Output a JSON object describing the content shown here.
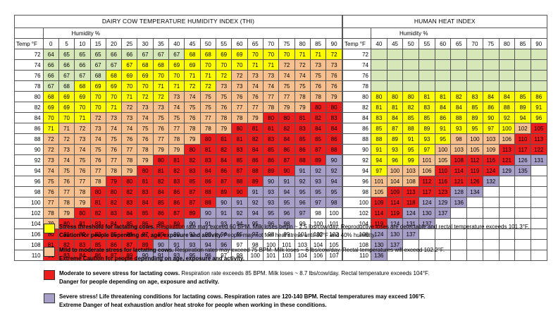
{
  "colors": {
    "green": "#d6e7b8",
    "yellow": "#ffff00",
    "peach": "#f8c08e",
    "red": "#ee1d1d",
    "purple": "#a89fc9",
    "white": "#ffffff"
  },
  "thi": {
    "title": "DAIRY COW TEMPERATURE HUMIDITY INDEX (THI)",
    "humidity_label": "Humidity %",
    "temp_label": "Temp °F",
    "humidity": [
      "0",
      "5",
      "10",
      "15",
      "20",
      "25",
      "30",
      "35",
      "40",
      "45",
      "50",
      "55",
      "60",
      "65",
      "70",
      "75",
      "80",
      "85",
      "90"
    ],
    "temps": [
      "72",
      "74",
      "76",
      "78",
      "80",
      "82",
      "84",
      "86",
      "88",
      "90",
      "92",
      "94",
      "96",
      "98",
      "100",
      "102",
      "104",
      "106",
      "108",
      "110"
    ],
    "rows": [
      [
        "64",
        "65",
        "65",
        "65",
        "66",
        "66",
        "67",
        "67",
        "67",
        "68",
        "68",
        "69",
        "69",
        "70",
        "70",
        "70",
        "71",
        "71",
        "72"
      ],
      [
        "66",
        "66",
        "66",
        "67",
        "67",
        "67",
        "68",
        "68",
        "69",
        "69",
        "70",
        "70",
        "70",
        "71",
        "71",
        "72",
        "72",
        "73",
        "73"
      ],
      [
        "66",
        "67",
        "67",
        "68",
        "68",
        "69",
        "69",
        "70",
        "70",
        "71",
        "71",
        "72",
        "72",
        "73",
        "73",
        "74",
        "74",
        "75",
        "76"
      ],
      [
        "67",
        "68",
        "68",
        "69",
        "69",
        "70",
        "70",
        "71",
        "71",
        "72",
        "72",
        "73",
        "73",
        "74",
        "74",
        "75",
        "75",
        "76",
        "76"
      ],
      [
        "68",
        "69",
        "69",
        "70",
        "70",
        "71",
        "72",
        "72",
        "73",
        "74",
        "75",
        "75",
        "76",
        "76",
        "77",
        "77",
        "78",
        "78",
        "79"
      ],
      [
        "69",
        "69",
        "70",
        "70",
        "71",
        "72",
        "73",
        "73",
        "74",
        "75",
        "75",
        "76",
        "77",
        "77",
        "78",
        "79",
        "79",
        "80",
        "80"
      ],
      [
        "70",
        "70",
        "71",
        "72",
        "73",
        "73",
        "74",
        "75",
        "75",
        "76",
        "77",
        "78",
        "78",
        "79",
        "80",
        "80",
        "81",
        "82",
        "83"
      ],
      [
        "71",
        "71",
        "72",
        "73",
        "74",
        "74",
        "75",
        "76",
        "77",
        "78",
        "78",
        "79",
        "80",
        "81",
        "81",
        "82",
        "83",
        "84",
        "84"
      ],
      [
        "72",
        "72",
        "73",
        "74",
        "75",
        "76",
        "76",
        "77",
        "78",
        "79",
        "80",
        "81",
        "81",
        "82",
        "83",
        "84",
        "85",
        "85",
        "86"
      ],
      [
        "72",
        "73",
        "74",
        "75",
        "76",
        "77",
        "78",
        "79",
        "79",
        "80",
        "81",
        "82",
        "83",
        "84",
        "85",
        "86",
        "86",
        "87",
        "88"
      ],
      [
        "73",
        "74",
        "75",
        "76",
        "77",
        "78",
        "79",
        "80",
        "81",
        "82",
        "83",
        "84",
        "85",
        "86",
        "86",
        "87",
        "88",
        "89",
        "90"
      ],
      [
        "74",
        "75",
        "76",
        "77",
        "78",
        "79",
        "80",
        "81",
        "82",
        "83",
        "84",
        "86",
        "87",
        "88",
        "89",
        "90",
        "91",
        "92",
        "92"
      ],
      [
        "75",
        "76",
        "77",
        "78",
        "79",
        "80",
        "81",
        "82",
        "83",
        "85",
        "86",
        "87",
        "88",
        "89",
        "90",
        "91",
        "92",
        "93",
        "94"
      ],
      [
        "76",
        "77",
        "78",
        "80",
        "80",
        "82",
        "83",
        "84",
        "86",
        "87",
        "88",
        "89",
        "90",
        "91",
        "93",
        "94",
        "95",
        "95",
        "95"
      ],
      [
        "77",
        "78",
        "79",
        "81",
        "82",
        "83",
        "84",
        "85",
        "86",
        "87",
        "88",
        "90",
        "91",
        "92",
        "93",
        "95",
        "96",
        "97",
        "98"
      ],
      [
        "78",
        "79",
        "80",
        "82",
        "83",
        "84",
        "85",
        "86",
        "87",
        "89",
        "90",
        "91",
        "92",
        "94",
        "95",
        "96",
        "97",
        "98",
        "100"
      ],
      [
        "79",
        "80",
        "81",
        "83",
        "84",
        "85",
        "86",
        "88",
        "89",
        "90",
        "91",
        "93",
        "94",
        "95",
        "96",
        "98",
        "99",
        "100",
        "101"
      ],
      [
        "80",
        "81",
        "82",
        "83",
        "85",
        "86",
        "87",
        "89",
        "90",
        "91",
        "93",
        "94",
        "95",
        "97",
        "98",
        "99",
        "101",
        "102",
        "103"
      ],
      [
        "81",
        "82",
        "83",
        "85",
        "86",
        "87",
        "89",
        "90",
        "91",
        "93",
        "94",
        "96",
        "97",
        "98",
        "100",
        "101",
        "103",
        "104",
        "105"
      ],
      [
        "81",
        "83",
        "84",
        "86",
        "87",
        "89",
        "90",
        "91",
        "93",
        "95",
        "96",
        "97",
        "99",
        "100",
        "101",
        "103",
        "104",
        "106",
        "107"
      ]
    ],
    "row_colors": [
      "GGGGGGGGGYYYYYYYYYY",
      "GGGGGYYYYYYYYYYPPPP",
      "GGGGYYYYYYYYPPPPPPP",
      "GGYYYYYYYYYPPPPPPPP",
      "YYYYYYYYPPPPPPPPPPP",
      "YYYYYPPPPPPPPPPPPRR",
      "YYYPPPPPPPPPPPRRRRR",
      "YPPPPPPPPPPPRRRRRRR",
      "PPPPPPPPPPRRRRRRRRR",
      "PPPPPPPPPRRRRRRRRRR",
      "PPPPPPPRRRRRRRRRRRV",
      "PPPPPPRRRRRRRRRRVVV",
      "PPPPRRRRRRRRRRVVVVV",
      "PPPRRRRRRRRRRVVVVVV",
      "PPPRRRRRRRRVVVVVVVV",
      "PPRRRRRRRRVVVVVVVWW",
      "PRRRRRRRRVVVVVVVWWW",
      "RRRRRRRRVVVVVVWWWWW",
      "RRRRRRRVVVVVWWWWWWW",
      "RRRRRRVVVVVWWWWWWWW"
    ]
  },
  "hhi": {
    "title": "HUMAN HEAT INDEX",
    "humidity_label": "Humidity %",
    "temp_label": "Temp °F",
    "humidity": [
      "40",
      "45",
      "50",
      "55",
      "60",
      "65",
      "70",
      "75",
      "80",
      "85",
      "90"
    ],
    "temps": [
      "72",
      "74",
      "76",
      "78",
      "80",
      "82",
      "84",
      "86",
      "88",
      "90",
      "92",
      "94",
      "96",
      "98",
      "100",
      "102",
      "104",
      "106",
      "108",
      "110"
    ],
    "rows": [
      [
        "",
        "",
        "",
        "",
        "",
        "",
        "",
        "",
        "",
        "",
        ""
      ],
      [
        "",
        "",
        "",
        "",
        "",
        "",
        "",
        "",
        "",
        "",
        ""
      ],
      [
        "",
        "",
        "",
        "",
        "",
        "",
        "",
        "",
        "",
        "",
        ""
      ],
      [
        "",
        "",
        "",
        "",
        "",
        "",
        "",
        "",
        "",
        "",
        ""
      ],
      [
        "80",
        "80",
        "80",
        "81",
        "81",
        "82",
        "83",
        "84",
        "84",
        "85",
        "86"
      ],
      [
        "81",
        "81",
        "82",
        "83",
        "84",
        "84",
        "85",
        "86",
        "88",
        "89",
        "91"
      ],
      [
        "83",
        "84",
        "85",
        "85",
        "86",
        "88",
        "89",
        "90",
        "92",
        "94",
        "96"
      ],
      [
        "85",
        "87",
        "88",
        "89",
        "91",
        "93",
        "95",
        "97",
        "100",
        "102",
        "105"
      ],
      [
        "88",
        "89",
        "91",
        "93",
        "95",
        "98",
        "100",
        "103",
        "106",
        "110",
        "113"
      ],
      [
        "91",
        "93",
        "95",
        "97",
        "100",
        "103",
        "105",
        "109",
        "113",
        "117",
        "122"
      ],
      [
        "94",
        "96",
        "99",
        "101",
        "105",
        "108",
        "112",
        "116",
        "121",
        "126",
        "131"
      ],
      [
        "97",
        "100",
        "103",
        "106",
        "110",
        "114",
        "119",
        "124",
        "129",
        "135",
        ""
      ],
      [
        "101",
        "104",
        "108",
        "112",
        "116",
        "121",
        "126",
        "132",
        "",
        "",
        ""
      ],
      [
        "105",
        "109",
        "113",
        "117",
        "123",
        "128",
        "134",
        "",
        "",
        "",
        ""
      ],
      [
        "109",
        "114",
        "118",
        "124",
        "129",
        "136",
        "",
        "",
        "",
        "",
        ""
      ],
      [
        "114",
        "119",
        "124",
        "130",
        "137",
        "",
        "",
        "",
        "",
        "",
        ""
      ],
      [
        "119",
        "124",
        "131",
        "137",
        "",
        "",
        "",
        "",
        "",
        "",
        ""
      ],
      [
        "124",
        "130",
        "137",
        "",
        "",
        "",
        "",
        "",
        "",
        "",
        ""
      ],
      [
        "130",
        "137",
        "",
        "",
        "",
        "",
        "",
        "",
        "",
        "",
        ""
      ],
      [
        "136",
        "",
        "",
        "",
        "",
        "",
        "",
        "",
        "",
        "",
        ""
      ]
    ],
    "row_colors": [
      "GGGGGGGGGGG",
      "GGGGGGGGGGG",
      "GGGGGGGGGGG",
      "GGGGGGGGGGG",
      "YYYYYYYYYYY",
      "YYYYYYYYYYY",
      "YYYYYYYYYYY",
      "YYYYYYYYYPR",
      "YYYYYPPPPRR",
      "YYYYPPPPRRR",
      "YYYPPRRRRVV",
      "YPPPRRRRVVW",
      "PPPRRRRVWWW",
      "PRRRRVVWWWW",
      "RRRVVVWWWWW",
      "RRVVVWWWWWW",
      "RVVVWWWWWWW",
      "VVVWWWWWWWW",
      "VVWWWWWWWWW",
      "VWWWWWWWWWW"
    ]
  },
  "legend": [
    {
      "color": "#ffff00",
      "line1_bold": "Stress threshold for lactating cows.",
      "line1_rest": " Respiration rate may exceed 60 BPM. Milk loses begin ~ 2.5 lbs/cow/day. Reproductive loses are detectable and rectal temperature exceeds 101.3°F.",
      "line2_bold": "Caution for people depending on, age, exposure and activity.",
      "line2_rest": " People may not feel heat stress until 80°F and 40% humidity."
    },
    {
      "color": "#f8c08e",
      "line1_bold": "Mild to moderate stress for lactating cows.",
      "line1_rest": "  Respiration rates may exceed 75 BPM.  Milk loses ~ 6 lbs/cow/day.  Rectal temperatures will exceed 102.2°F.",
      "line2_bold": "Extreme Caution for people depending on age, exposure and activity.",
      "line2_rest": ""
    },
    {
      "color": "#ee1d1d",
      "line1_bold": "Moderate to severe stress for lactating cows.",
      "line1_rest": "  Respiration rate exceeds 85 BPM.  Milk loses ~ 8.7 lbs/cow/day.  Rectal temperature exceeds 104°F.",
      "line2_bold": "Danger for people depending on age, exposure and activity.",
      "line2_rest": ""
    },
    {
      "color": "#a89fc9",
      "line1_bold": "Severe stress!  Life threatening conditions for lactating cows. Respiration rates are 120-140 BPM. Rectal temperatures may exceed 106°F.",
      "line1_rest": "",
      "line2_bold": "Extreme Danger of heat exhaustion and/or heat stroke for people when working in these conditions.",
      "line2_rest": ""
    }
  ]
}
